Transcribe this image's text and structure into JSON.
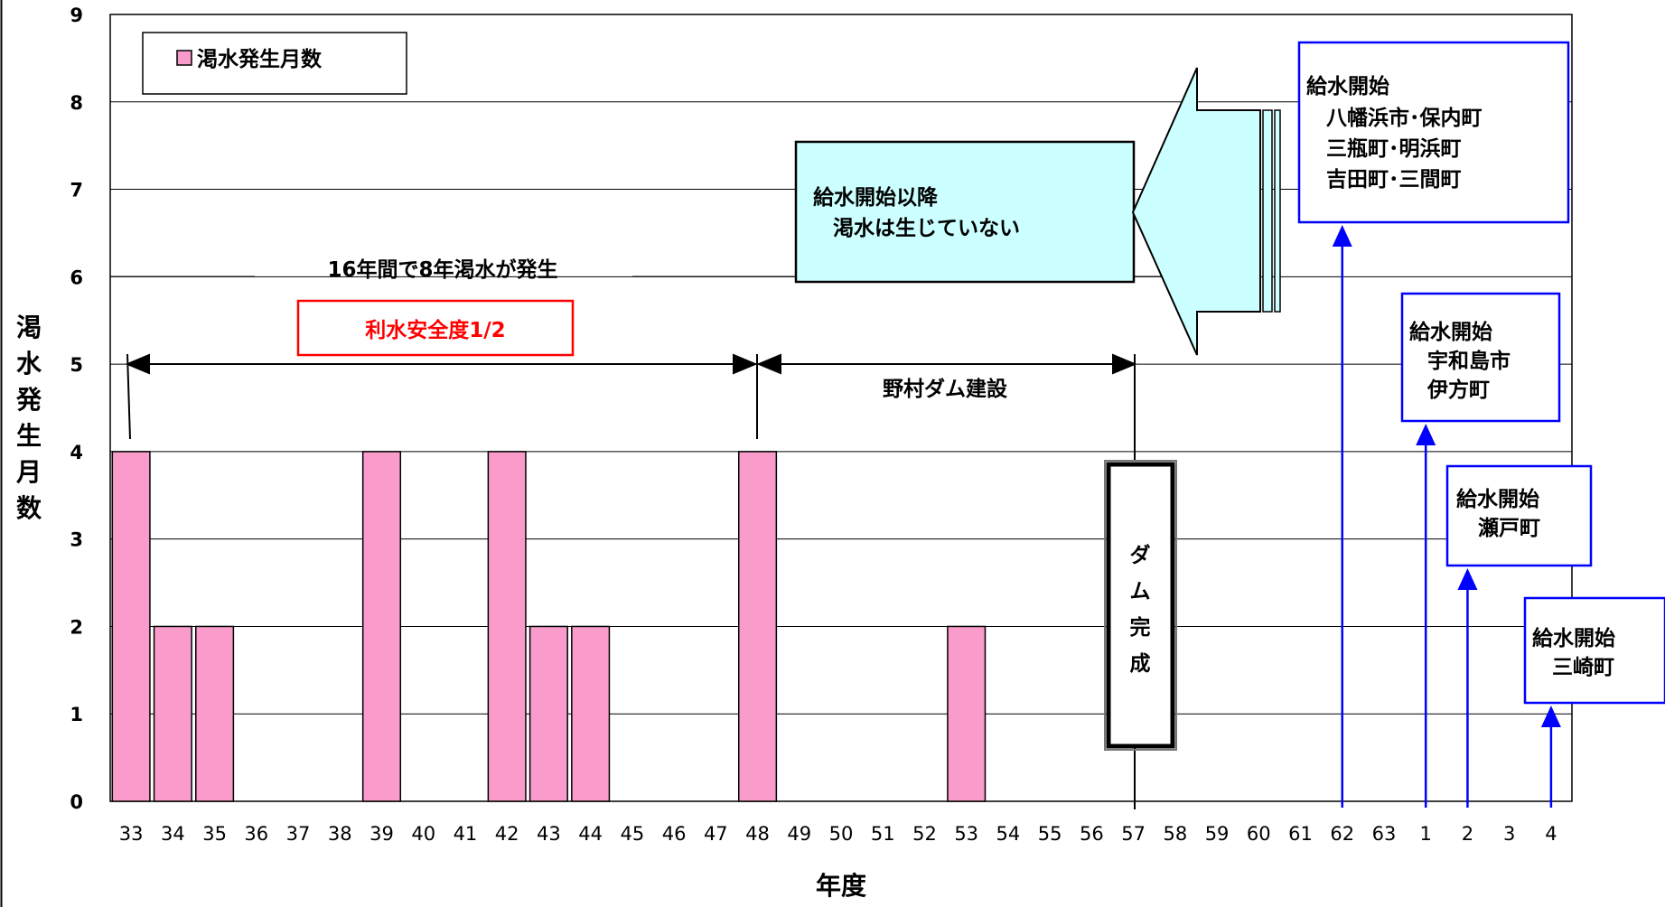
{
  "chart_data": {
    "type": "bar",
    "categories": [
      "33",
      "34",
      "35",
      "36",
      "37",
      "38",
      "39",
      "40",
      "41",
      "42",
      "43",
      "44",
      "45",
      "46",
      "47",
      "48",
      "49",
      "50",
      "51",
      "52",
      "53",
      "54",
      "55",
      "56",
      "57",
      "58",
      "59",
      "60",
      "61",
      "62",
      "63",
      "1",
      "2",
      "3",
      "4"
    ],
    "series": [
      {
        "name": "渇水発生月数",
        "values": [
          4,
          2,
          2,
          0,
          0,
          0,
          4,
          0,
          0,
          4,
          2,
          2,
          0,
          0,
          0,
          4,
          0,
          0,
          0,
          0,
          2,
          0,
          0,
          0,
          0,
          0,
          0,
          0,
          0,
          0,
          0,
          0,
          0,
          0,
          0
        ],
        "color": "#F99BCB"
      }
    ],
    "ylim": [
      0,
      9
    ],
    "yticks": [
      0,
      1,
      2,
      3,
      4,
      5,
      6,
      7,
      8,
      9
    ],
    "xlabel": "年度",
    "ylabel": "渇水発生月数",
    "grid": true,
    "legend": "top-left",
    "annotations": {
      "period_label": "16年間で8年渇水が発生",
      "safety_label": "利水安全度1/2",
      "construction_label": "野村ダム建設",
      "dam_complete_label": "ダム完成",
      "no_drought_lines": [
        "給水開始以降",
        "渇水は生じていない"
      ],
      "supply_boxes": [
        {
          "year": "62",
          "lines": [
            "給水開始",
            "八幡浜市･保内町",
            "三瓶町･明浜町",
            "吉田町･三間町"
          ]
        },
        {
          "year": "1",
          "lines": [
            "給水開始",
            "宇和島市",
            "伊方町"
          ]
        },
        {
          "year": "2",
          "lines": [
            "給水開始",
            "瀬戸町"
          ]
        },
        {
          "year": "4",
          "lines": [
            "給水開始",
            "三崎町"
          ]
        }
      ]
    },
    "colors": {
      "bar": "#F99BCB",
      "arrow_fill": "#CCFFFF",
      "supply": "#0000FF",
      "safety": "#FF0000"
    }
  }
}
